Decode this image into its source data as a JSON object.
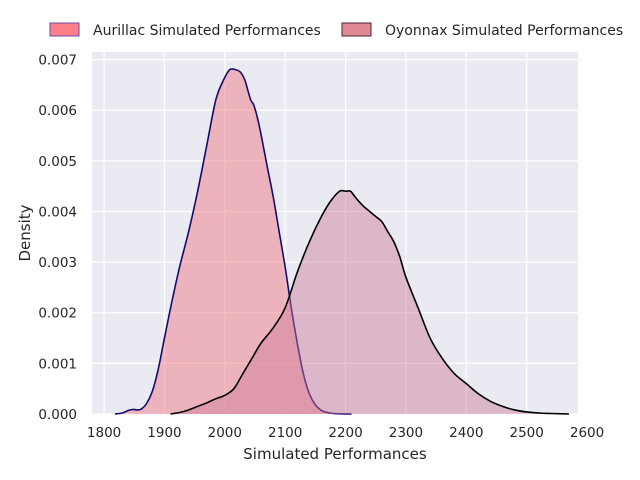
{
  "chart_data": {
    "type": "area",
    "title": "",
    "xlabel": "Simulated Performances",
    "ylabel": "Density",
    "xlim": [
      1780,
      2585
    ],
    "ylim": [
      0,
      0.00715
    ],
    "xticks": [
      1800,
      1900,
      2000,
      2100,
      2200,
      2300,
      2400,
      2500,
      2600
    ],
    "yticks": [
      0.0,
      0.001,
      0.002,
      0.003,
      0.004,
      0.005,
      0.006,
      0.007
    ],
    "ytick_labels": [
      "0.000",
      "0.001",
      "0.002",
      "0.003",
      "0.004",
      "0.005",
      "0.006",
      "0.007"
    ],
    "grid": true,
    "legend_position": "top (above plot, two columns)",
    "background": "#eaeaf2",
    "series": [
      {
        "name": "Aurillac Simulated Performances",
        "fill": "#f07c88",
        "fill_opacity": 0.5,
        "line": "#160a6e",
        "legend_fill": "#fd7f8a",
        "legend_edge": "#6b4aa8",
        "x": [
          1818,
          1830,
          1840,
          1848,
          1855,
          1862,
          1870,
          1880,
          1890,
          1900,
          1912,
          1925,
          1940,
          1955,
          1970,
          1985,
          1998,
          2008,
          2018,
          2026,
          2033,
          2038,
          2043,
          2048,
          2055,
          2062,
          2070,
          2080,
          2090,
          2100,
          2110,
          2120,
          2130,
          2140,
          2150,
          2160,
          2170,
          2180,
          2195,
          2210
        ],
        "y": [
          0.0,
          2e-05,
          7e-05,
          9e-05,
          8e-05,
          0.0001,
          0.0002,
          0.00045,
          0.0009,
          0.0015,
          0.0022,
          0.0029,
          0.0036,
          0.0044,
          0.0053,
          0.0062,
          0.0066,
          0.0068,
          0.0068,
          0.00675,
          0.0066,
          0.0064,
          0.0062,
          0.0061,
          0.0058,
          0.0054,
          0.0049,
          0.0043,
          0.0036,
          0.0029,
          0.0021,
          0.0014,
          0.0008,
          0.0004,
          0.00018,
          7e-05,
          3e-05,
          1e-05,
          3e-06,
          0.0
        ]
      },
      {
        "name": "Oyonnax Simulated Performances",
        "fill": "#cc7a99",
        "fill_opacity": 0.45,
        "line": "#000000",
        "legend_fill": "#e08a96",
        "legend_edge": "#4a2030",
        "x": [
          1910,
          1925,
          1940,
          1955,
          1970,
          1985,
          2000,
          2015,
          2030,
          2045,
          2060,
          2080,
          2100,
          2120,
          2140,
          2160,
          2175,
          2190,
          2200,
          2208,
          2215,
          2222,
          2230,
          2240,
          2250,
          2260,
          2270,
          2280,
          2290,
          2300,
          2320,
          2340,
          2360,
          2380,
          2400,
          2420,
          2440,
          2460,
          2480,
          2500,
          2520,
          2540,
          2560,
          2570
        ],
        "y": [
          0.0,
          3e-05,
          8e-05,
          0.00015,
          0.00022,
          0.0003,
          0.00037,
          0.0005,
          0.0008,
          0.0011,
          0.0014,
          0.0017,
          0.0021,
          0.0028,
          0.0034,
          0.0039,
          0.0042,
          0.0044,
          0.0044,
          0.0044,
          0.0043,
          0.0042,
          0.0041,
          0.004,
          0.0039,
          0.0038,
          0.0036,
          0.0034,
          0.0031,
          0.0027,
          0.0021,
          0.0015,
          0.0011,
          0.0008,
          0.0006,
          0.0004,
          0.00025,
          0.00015,
          8e-05,
          4e-05,
          2e-05,
          1e-05,
          3e-06,
          0.0
        ]
      }
    ]
  }
}
